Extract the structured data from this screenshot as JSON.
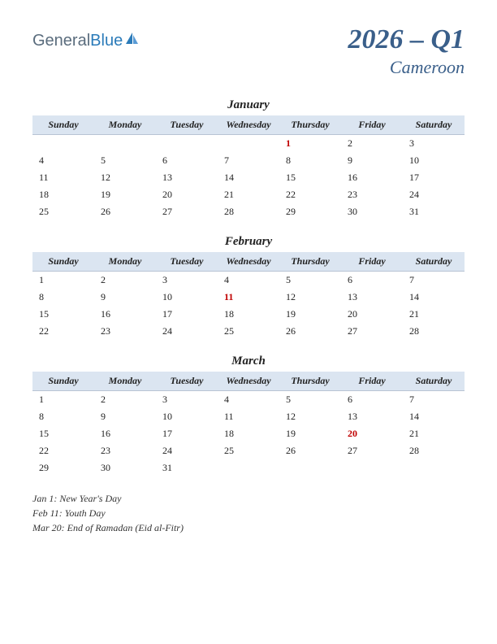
{
  "logo": {
    "general": "General",
    "blue": "Blue"
  },
  "title": "2026 – Q1",
  "country": "Cameroon",
  "colors": {
    "header_bg": "#dbe5f1",
    "title_color": "#3a5f8a",
    "holiday_color": "#c00000",
    "text_color": "#222222",
    "logo_gray": "#5a6c7d",
    "logo_blue": "#2b7bb9"
  },
  "day_headers": [
    "Sunday",
    "Monday",
    "Tuesday",
    "Wednesday",
    "Thursday",
    "Friday",
    "Saturday"
  ],
  "months": [
    {
      "name": "January",
      "weeks": [
        [
          "",
          "",
          "",
          "",
          "1",
          "2",
          "3"
        ],
        [
          "4",
          "5",
          "6",
          "7",
          "8",
          "9",
          "10"
        ],
        [
          "11",
          "12",
          "13",
          "14",
          "15",
          "16",
          "17"
        ],
        [
          "18",
          "19",
          "20",
          "21",
          "22",
          "23",
          "24"
        ],
        [
          "25",
          "26",
          "27",
          "28",
          "29",
          "30",
          "31"
        ]
      ],
      "holidays": [
        "1"
      ]
    },
    {
      "name": "February",
      "weeks": [
        [
          "1",
          "2",
          "3",
          "4",
          "5",
          "6",
          "7"
        ],
        [
          "8",
          "9",
          "10",
          "11",
          "12",
          "13",
          "14"
        ],
        [
          "15",
          "16",
          "17",
          "18",
          "19",
          "20",
          "21"
        ],
        [
          "22",
          "23",
          "24",
          "25",
          "26",
          "27",
          "28"
        ]
      ],
      "holidays": [
        "11"
      ]
    },
    {
      "name": "March",
      "weeks": [
        [
          "1",
          "2",
          "3",
          "4",
          "5",
          "6",
          "7"
        ],
        [
          "8",
          "9",
          "10",
          "11",
          "12",
          "13",
          "14"
        ],
        [
          "15",
          "16",
          "17",
          "18",
          "19",
          "20",
          "21"
        ],
        [
          "22",
          "23",
          "24",
          "25",
          "26",
          "27",
          "28"
        ],
        [
          "29",
          "30",
          "31",
          "",
          "",
          "",
          ""
        ]
      ],
      "holidays": [
        "20"
      ]
    }
  ],
  "holiday_list": [
    "Jan 1: New Year's Day",
    "Feb 11: Youth Day",
    "Mar 20: End of Ramadan (Eid al-Fitr)"
  ]
}
